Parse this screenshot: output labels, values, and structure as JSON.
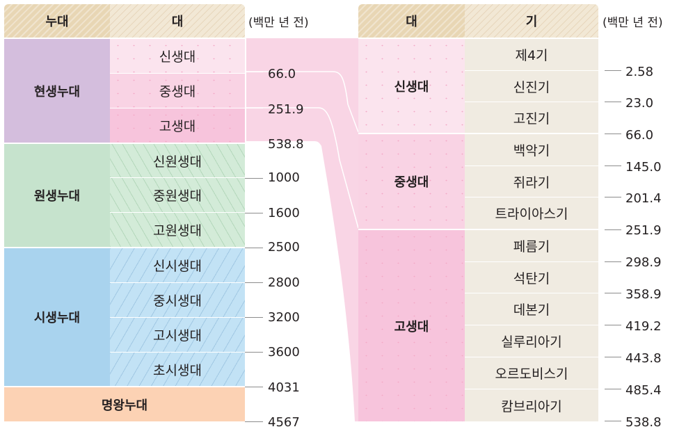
{
  "left_table": {
    "header": {
      "eon": "누대",
      "era": "대"
    },
    "unit": "(백만 년 전)",
    "eons": [
      {
        "name": "현생누대",
        "eras": [
          "신생대",
          "중생대",
          "고생대"
        ]
      },
      {
        "name": "원생누대",
        "eras": [
          "신원생대",
          "중원생대",
          "고원생대"
        ]
      },
      {
        "name": "시생누대",
        "eras": [
          "신시생대",
          "중시생대",
          "고시생대",
          "초시생대"
        ]
      },
      {
        "name": "명왕누대",
        "eras": []
      }
    ],
    "boundaries": [
      "66.0",
      "251.9",
      "538.8",
      "1000",
      "1600",
      "2500",
      "2800",
      "3200",
      "3600",
      "4031",
      "4567"
    ]
  },
  "right_table": {
    "header": {
      "era": "대",
      "period": "기"
    },
    "unit": "(백만 년 전)",
    "eras": [
      {
        "name": "신생대",
        "periods": [
          "제4기",
          "신진기",
          "고진기"
        ]
      },
      {
        "name": "중생대",
        "periods": [
          "백악기",
          "쥐라기",
          "트라이아스기"
        ]
      },
      {
        "name": "고생대",
        "periods": [
          "페름기",
          "석탄기",
          "데본기",
          "실루리아기",
          "오르도비스기",
          "캄브리아기"
        ]
      }
    ],
    "boundaries": [
      "2.58",
      "23.0",
      "66.0",
      "145.0",
      "201.4",
      "251.9",
      "298.9",
      "358.9",
      "419.2",
      "443.8",
      "485.4",
      "538.8"
    ]
  },
  "colors": {
    "phanerozoic": "#d4bedd",
    "proterozoic": "#c6e3cd",
    "archean": "#a9d3ee",
    "hadean": "#fcd2b4",
    "cenozoic": "#fbe4ee",
    "mesozoic": "#f9d3e4",
    "paleozoic": "#f7c4dc",
    "period": "#f0ebe1",
    "header": "#e8d6b4",
    "connector": "#f9d5e5"
  }
}
